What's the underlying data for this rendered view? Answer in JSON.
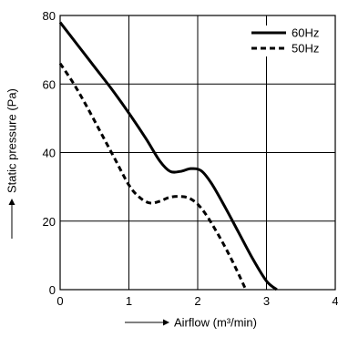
{
  "chart_data": {
    "type": "line",
    "title": "",
    "xlabel": "Airflow (m³/min)",
    "ylabel": "Static pressure (Pa)",
    "xlim": [
      0,
      4
    ],
    "ylim": [
      0,
      80
    ],
    "x_ticks": [
      0,
      1,
      2,
      3,
      4
    ],
    "y_ticks": [
      0,
      20,
      40,
      60,
      80
    ],
    "x_tick_labels": [
      "0",
      "1",
      "2",
      "3",
      "4"
    ],
    "y_tick_labels": [
      "0",
      "20",
      "40",
      "60",
      "80"
    ],
    "grid": true,
    "legend_position": "top-right",
    "series": [
      {
        "name": "60Hz",
        "line_style": "solid",
        "color": "#000000",
        "points": [
          [
            0,
            78
          ],
          [
            0.25,
            71.5
          ],
          [
            0.5,
            65
          ],
          [
            0.75,
            58.5
          ],
          [
            1.0,
            51.5
          ],
          [
            1.25,
            44
          ],
          [
            1.45,
            37.5
          ],
          [
            1.6,
            34.5
          ],
          [
            1.75,
            34.5
          ],
          [
            1.9,
            35.3
          ],
          [
            2.05,
            34.7
          ],
          [
            2.2,
            31
          ],
          [
            2.4,
            24
          ],
          [
            2.6,
            16.5
          ],
          [
            2.8,
            9
          ],
          [
            3.0,
            2.5
          ],
          [
            3.15,
            0
          ]
        ]
      },
      {
        "name": "50Hz",
        "line_style": "dashed",
        "color": "#000000",
        "points": [
          [
            0,
            66
          ],
          [
            0.2,
            60
          ],
          [
            0.4,
            53
          ],
          [
            0.6,
            45.5
          ],
          [
            0.8,
            38
          ],
          [
            1.0,
            30.5
          ],
          [
            1.15,
            27
          ],
          [
            1.3,
            25.3
          ],
          [
            1.45,
            25.8
          ],
          [
            1.6,
            27
          ],
          [
            1.8,
            27.1
          ],
          [
            1.95,
            25.8
          ],
          [
            2.1,
            22.5
          ],
          [
            2.3,
            16
          ],
          [
            2.5,
            8.5
          ],
          [
            2.7,
            0
          ]
        ]
      }
    ]
  }
}
